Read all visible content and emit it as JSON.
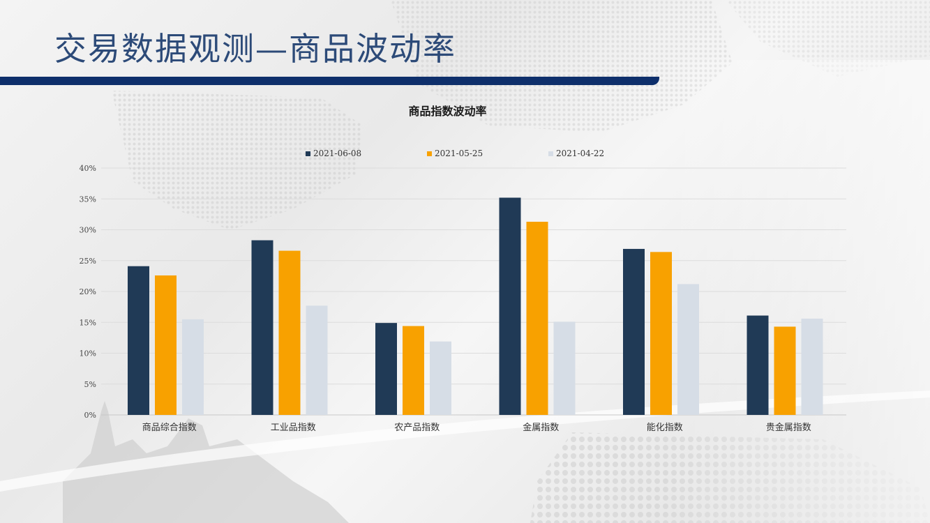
{
  "slide": {
    "title": "交易数据观测—商品波动率"
  },
  "chart_data": {
    "type": "bar",
    "title": "商品指数波动率",
    "categories": [
      "商品综合指数",
      "工业品指数",
      "农产品指数",
      "金属指数",
      "能化指数",
      "贵金属指数"
    ],
    "series": [
      {
        "name": "2021-06-08",
        "color": "#203a56",
        "values": [
          24.1,
          28.3,
          14.9,
          35.2,
          26.9,
          16.1
        ]
      },
      {
        "name": "2021-05-25",
        "color": "#f8a100",
        "values": [
          22.6,
          26.6,
          14.4,
          31.3,
          26.4,
          14.3
        ]
      },
      {
        "name": "2021-04-22",
        "color": "#d6dde6",
        "values": [
          15.5,
          17.7,
          11.9,
          15.1,
          21.2,
          15.6
        ]
      }
    ],
    "ylim": [
      0,
      40
    ],
    "yticks": [
      "0%",
      "5%",
      "10%",
      "15%",
      "20%",
      "25%",
      "30%",
      "35%",
      "40%"
    ],
    "legend_position": "top",
    "grid": true
  }
}
